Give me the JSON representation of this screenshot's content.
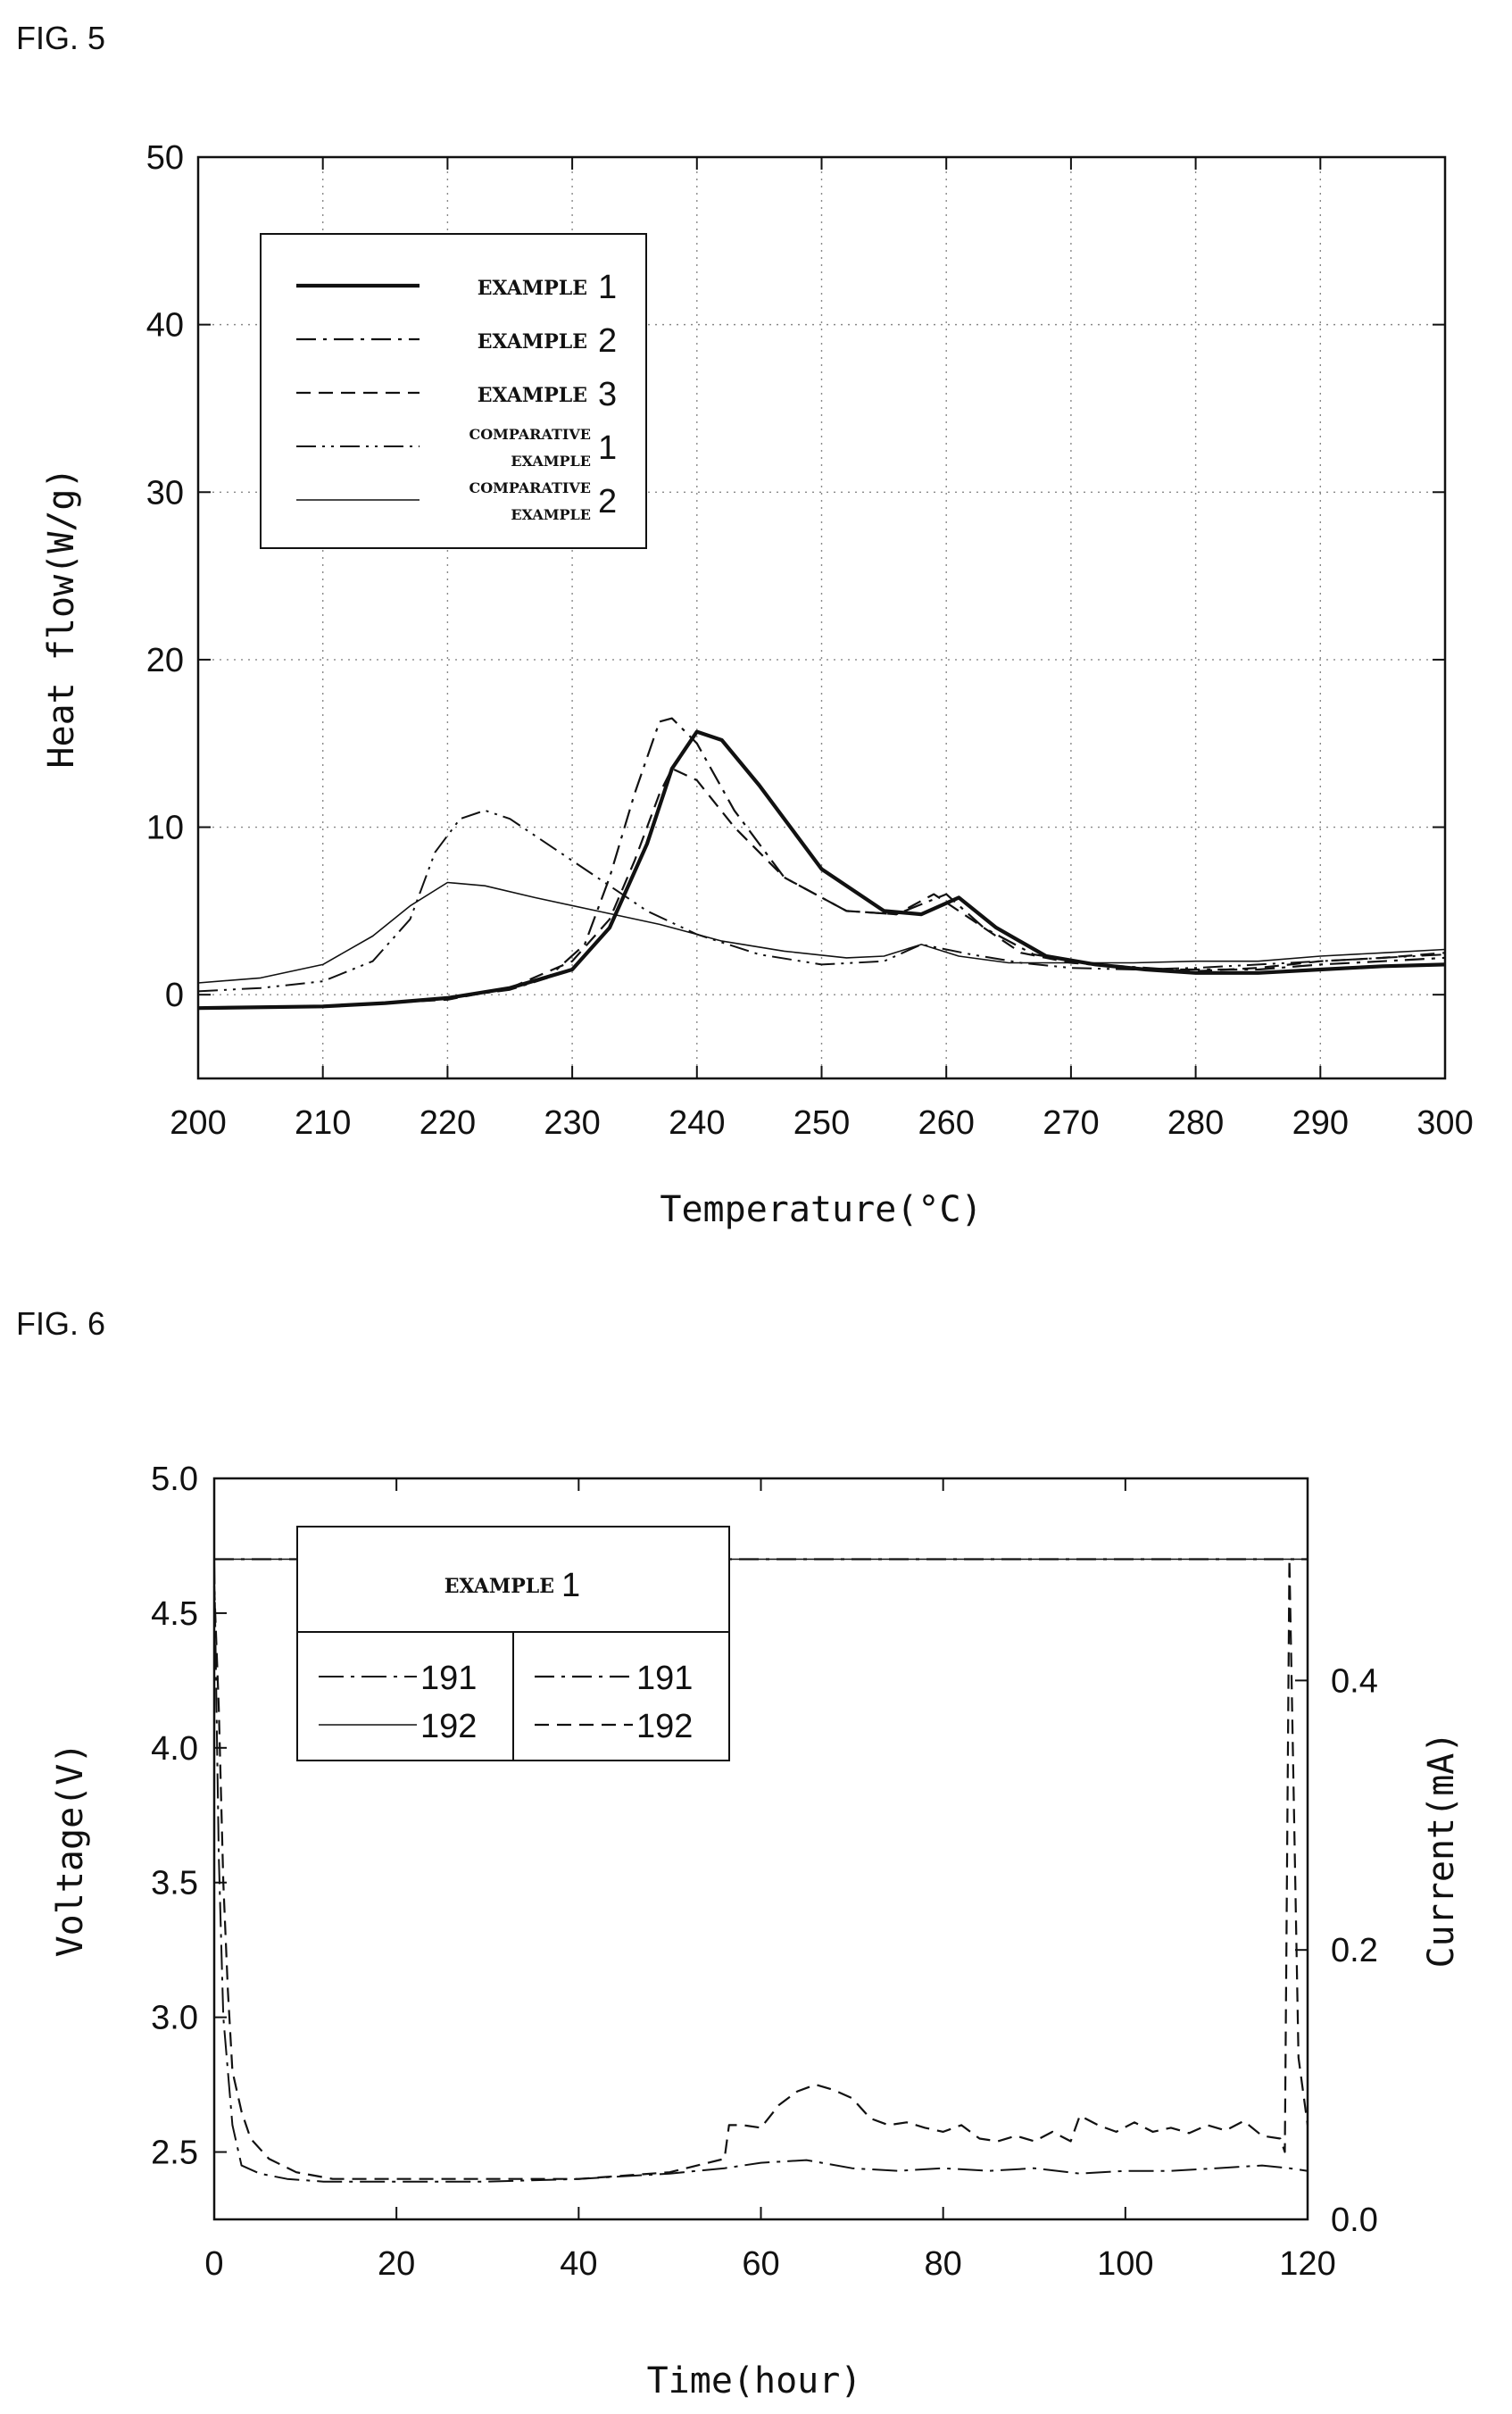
{
  "fig5_label": "FIG. 5",
  "fig6_label": "FIG. 6",
  "chart_data": [
    {
      "type": "line",
      "xlabel": "Temperature(°C)",
      "ylabel": "Heat flow(W/g)",
      "xlim": [
        200,
        300
      ],
      "ylim": [
        -5,
        50
      ],
      "xticks": [
        "200",
        "210",
        "220",
        "230",
        "240",
        "250",
        "260",
        "270",
        "280",
        "290",
        "300"
      ],
      "yticks": [
        "0",
        "10",
        "20",
        "30",
        "40",
        "50"
      ],
      "grid": true,
      "legend_placement": "top-left",
      "legend": [
        {
          "word": "EXAMPLE",
          "num": "1"
        },
        {
          "word": "EXAMPLE",
          "num": "2"
        },
        {
          "word": "EXAMPLE",
          "num": "3"
        },
        {
          "word1": "COMPARATIVE",
          "word2": "EXAMPLE",
          "num": "1"
        },
        {
          "word1": "COMPARATIVE",
          "word2": "EXAMPLE",
          "num": "2"
        }
      ],
      "series": [
        {
          "style": "thick-solid",
          "x": [
            200,
            210,
            215,
            220,
            225,
            230,
            233,
            236,
            238,
            240,
            242,
            245,
            250,
            255,
            258,
            261,
            264,
            268,
            272,
            276,
            280,
            285,
            290,
            295,
            300
          ],
          "y": [
            -0.8,
            -0.7,
            -0.5,
            -0.2,
            0.4,
            1.5,
            4,
            9,
            13.5,
            15.7,
            15.2,
            12.5,
            7.5,
            5,
            4.8,
            5.8,
            4,
            2.3,
            1.8,
            1.5,
            1.3,
            1.3,
            1.5,
            1.7,
            1.8
          ]
        },
        {
          "style": "dash-dot",
          "x": [
            200,
            210,
            215,
            220,
            225,
            228,
            231,
            233,
            235,
            237,
            238,
            240,
            243,
            247,
            252,
            256,
            258,
            260,
            263,
            267,
            272,
            278,
            285,
            290,
            295,
            300
          ],
          "y": [
            -0.8,
            -0.7,
            -0.5,
            -0.2,
            0.3,
            1,
            3,
            7,
            12,
            16.3,
            16.5,
            15,
            11,
            7,
            5,
            4.8,
            5.4,
            6,
            4,
            2.4,
            1.8,
            1.5,
            1.5,
            1.8,
            2,
            2.2
          ]
        },
        {
          "style": "dashed",
          "x": [
            200,
            210,
            215,
            220,
            225,
            230,
            233,
            235,
            237,
            238,
            240,
            243,
            247,
            252,
            256,
            259,
            262,
            266,
            270,
            275,
            280,
            285,
            290,
            295,
            300
          ],
          "y": [
            -0.8,
            -0.7,
            -0.5,
            -0.3,
            0.4,
            2,
            4.5,
            8,
            12,
            13.5,
            12.8,
            10,
            7,
            5,
            4.8,
            6,
            4.5,
            2.5,
            1.9,
            1.6,
            1.4,
            1.6,
            2,
            2.2,
            2.5
          ]
        },
        {
          "style": "dash-dot-dot",
          "x": [
            200,
            205,
            210,
            214,
            217,
            219,
            221,
            223,
            225,
            228,
            232,
            236,
            240,
            245,
            250,
            255,
            258,
            262,
            266,
            270,
            275,
            280,
            285,
            290,
            295,
            300
          ],
          "y": [
            0.2,
            0.4,
            0.8,
            2,
            4.5,
            8.5,
            10.5,
            11,
            10.5,
            9,
            7,
            5,
            3.6,
            2.4,
            1.8,
            2,
            3,
            2.4,
            1.9,
            1.6,
            1.5,
            1.6,
            1.8,
            2,
            2.2,
            2.4
          ]
        },
        {
          "style": "thin-solid",
          "x": [
            200,
            205,
            210,
            214,
            217,
            220,
            223,
            227,
            232,
            237,
            242,
            247,
            252,
            255,
            258,
            261,
            265,
            270,
            275,
            280,
            285,
            290,
            295,
            300
          ],
          "y": [
            0.7,
            1,
            1.8,
            3.5,
            5.3,
            6.7,
            6.5,
            5.8,
            5,
            4.2,
            3.2,
            2.6,
            2.2,
            2.3,
            3,
            2.3,
            1.9,
            1.9,
            1.9,
            2,
            2,
            2.3,
            2.5,
            2.7
          ]
        }
      ]
    },
    {
      "type": "line",
      "xlabel": "Time(hour)",
      "ylabel": "Voltage(V)",
      "ylabel_right": "Current(mA)",
      "xlim": [
        0,
        120
      ],
      "ylim": [
        2.25,
        5.0
      ],
      "ylim_right": [
        0.0,
        0.55
      ],
      "xticks": [
        "0",
        "20",
        "40",
        "60",
        "80",
        "100",
        "120"
      ],
      "yticks": [
        "2.5",
        "3.0",
        "3.5",
        "4.0",
        "4.5",
        "5.0"
      ],
      "yticks_right": [
        "0.0",
        "0.2",
        "0.4"
      ],
      "grid": false,
      "legend_placement": "top-left",
      "legend_title": {
        "word": "EXAMPLE",
        "num": "1"
      },
      "legend_entries": [
        {
          "label": "191",
          "style": "long-dash-dot"
        },
        {
          "label": "191",
          "style": "dash-dot"
        },
        {
          "label": "192",
          "style": "solid"
        },
        {
          "label": "192",
          "style": "dashed"
        }
      ],
      "series": [
        {
          "label": "191",
          "style": "long-dash-dot",
          "axis": "left",
          "x": [
            0,
            0.5,
            1,
            2,
            3,
            5,
            8,
            12,
            20,
            30,
            40,
            50,
            56,
            60,
            65,
            70,
            75,
            80,
            85,
            90,
            95,
            100,
            105,
            110,
            115,
            118,
            120
          ],
          "y": [
            4.7,
            3.6,
            3.0,
            2.6,
            2.45,
            2.42,
            2.4,
            2.39,
            2.39,
            2.39,
            2.4,
            2.42,
            2.44,
            2.46,
            2.47,
            2.44,
            2.43,
            2.44,
            2.43,
            2.44,
            2.42,
            2.43,
            2.43,
            2.44,
            2.45,
            2.44,
            2.43
          ]
        },
        {
          "label": "191",
          "style": "dash-dot",
          "axis": "right",
          "x": [
            0,
            120
          ],
          "y": [
            0.49,
            0.49
          ]
        },
        {
          "label": "192",
          "style": "solid",
          "axis": "right",
          "x": [
            0,
            120
          ],
          "y": [
            0.49,
            0.49
          ]
        },
        {
          "label": "192",
          "style": "dashed",
          "axis": "right",
          "x": [
            0,
            0.5,
            1,
            1.5,
            2,
            3,
            4,
            6,
            9,
            13,
            20,
            30,
            40,
            50,
            56,
            56.5,
            58,
            60,
            62,
            64,
            66,
            68,
            70,
            72,
            74,
            76,
            78,
            80,
            82,
            84,
            86,
            88,
            90,
            92,
            94,
            95,
            97,
            99,
            101,
            103,
            105,
            107,
            109,
            111,
            113,
            115,
            117,
            117.5,
            118,
            119,
            120
          ],
          "y": [
            0.47,
            0.38,
            0.25,
            0.17,
            0.11,
            0.08,
            0.06,
            0.045,
            0.035,
            0.03,
            0.03,
            0.03,
            0.03,
            0.035,
            0.045,
            0.07,
            0.07,
            0.068,
            0.085,
            0.095,
            0.1,
            0.096,
            0.09,
            0.075,
            0.07,
            0.072,
            0.068,
            0.065,
            0.07,
            0.06,
            0.058,
            0.062,
            0.058,
            0.065,
            0.058,
            0.077,
            0.07,
            0.065,
            0.072,
            0.065,
            0.068,
            0.064,
            0.07,
            0.066,
            0.073,
            0.062,
            0.06,
            0.05,
            0.49,
            0.12,
            0.07
          ]
        }
      ]
    }
  ]
}
